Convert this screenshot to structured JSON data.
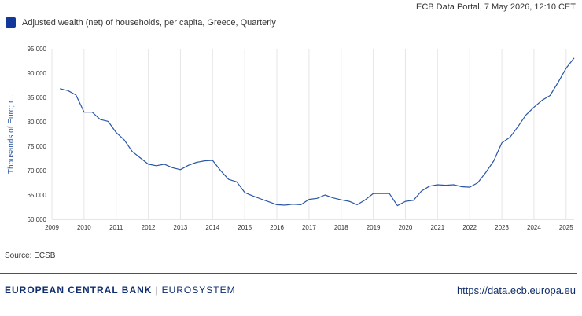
{
  "header": {
    "portal_note": "ECB Data Portal, 7 May 2026, 12:10 CET"
  },
  "legend": {
    "label": "Adjusted wealth (net) of households, per capita, Greece, Quarterly",
    "color": "#12389a"
  },
  "source": "Source: ECSB",
  "footer": {
    "brand": "EUROPEAN CENTRAL BANK",
    "separator": "|",
    "eurosystem": "EUROSYSTEM",
    "url": "https://data.ecb.europa.eu"
  },
  "chart_data": {
    "type": "line",
    "ylabel": "Thousands of Euro; r...",
    "ylim": [
      60000,
      95000
    ],
    "yticks": [
      "60,000",
      "65,000",
      "70,000",
      "75,000",
      "80,000",
      "85,000",
      "90,000",
      "95,000"
    ],
    "xlim": [
      2009,
      2025.25
    ],
    "xticks": [
      "2009",
      "2010",
      "2011",
      "2012",
      "2013",
      "2014",
      "2015",
      "2016",
      "2017",
      "2018",
      "2019",
      "2020",
      "2021",
      "2022",
      "2023",
      "2024",
      "2025"
    ],
    "grid": "vertical",
    "line_color": "#2a56a6",
    "series": [
      {
        "x": [
          2009.25,
          2009.5,
          2009.75,
          2010.0,
          2010.25,
          2010.5,
          2010.75,
          2011.0,
          2011.25,
          2011.5,
          2011.75,
          2012.0,
          2012.25,
          2012.5,
          2012.75,
          2013.0,
          2013.25,
          2013.5,
          2013.75,
          2014.0,
          2014.25,
          2014.5,
          2014.75,
          2015.0,
          2015.25,
          2015.5,
          2015.75,
          2016.0,
          2016.25,
          2016.5,
          2016.75,
          2017.0,
          2017.25,
          2017.5,
          2017.75,
          2018.0,
          2018.25,
          2018.5,
          2018.75,
          2019.0,
          2019.25,
          2019.5,
          2019.75,
          2020.0,
          2020.25,
          2020.5,
          2020.75,
          2021.0,
          2021.25,
          2021.5,
          2021.75,
          2022.0,
          2022.25,
          2022.5,
          2022.75,
          2023.0,
          2023.25,
          2023.5,
          2023.75,
          2024.0,
          2024.25,
          2024.5,
          2024.75,
          2025.0,
          2025.25
        ],
        "values": [
          86800,
          86400,
          85500,
          82000,
          82000,
          80500,
          80100,
          77800,
          76300,
          73900,
          72600,
          71300,
          71000,
          71300,
          70600,
          70200,
          71100,
          71700,
          72000,
          72100,
          70000,
          68200,
          67700,
          65500,
          64800,
          64200,
          63600,
          63000,
          62900,
          63100,
          63000,
          64100,
          64300,
          65000,
          64400,
          64000,
          63700,
          63000,
          64000,
          65300,
          65300,
          65300,
          62800,
          63700,
          63900,
          65800,
          66800,
          67100,
          67000,
          67100,
          66700,
          66600,
          67500,
          69600,
          72000,
          75700,
          76800,
          79000,
          81400,
          83000,
          84400,
          85400,
          88100,
          91000,
          93100
        ]
      }
    ]
  }
}
